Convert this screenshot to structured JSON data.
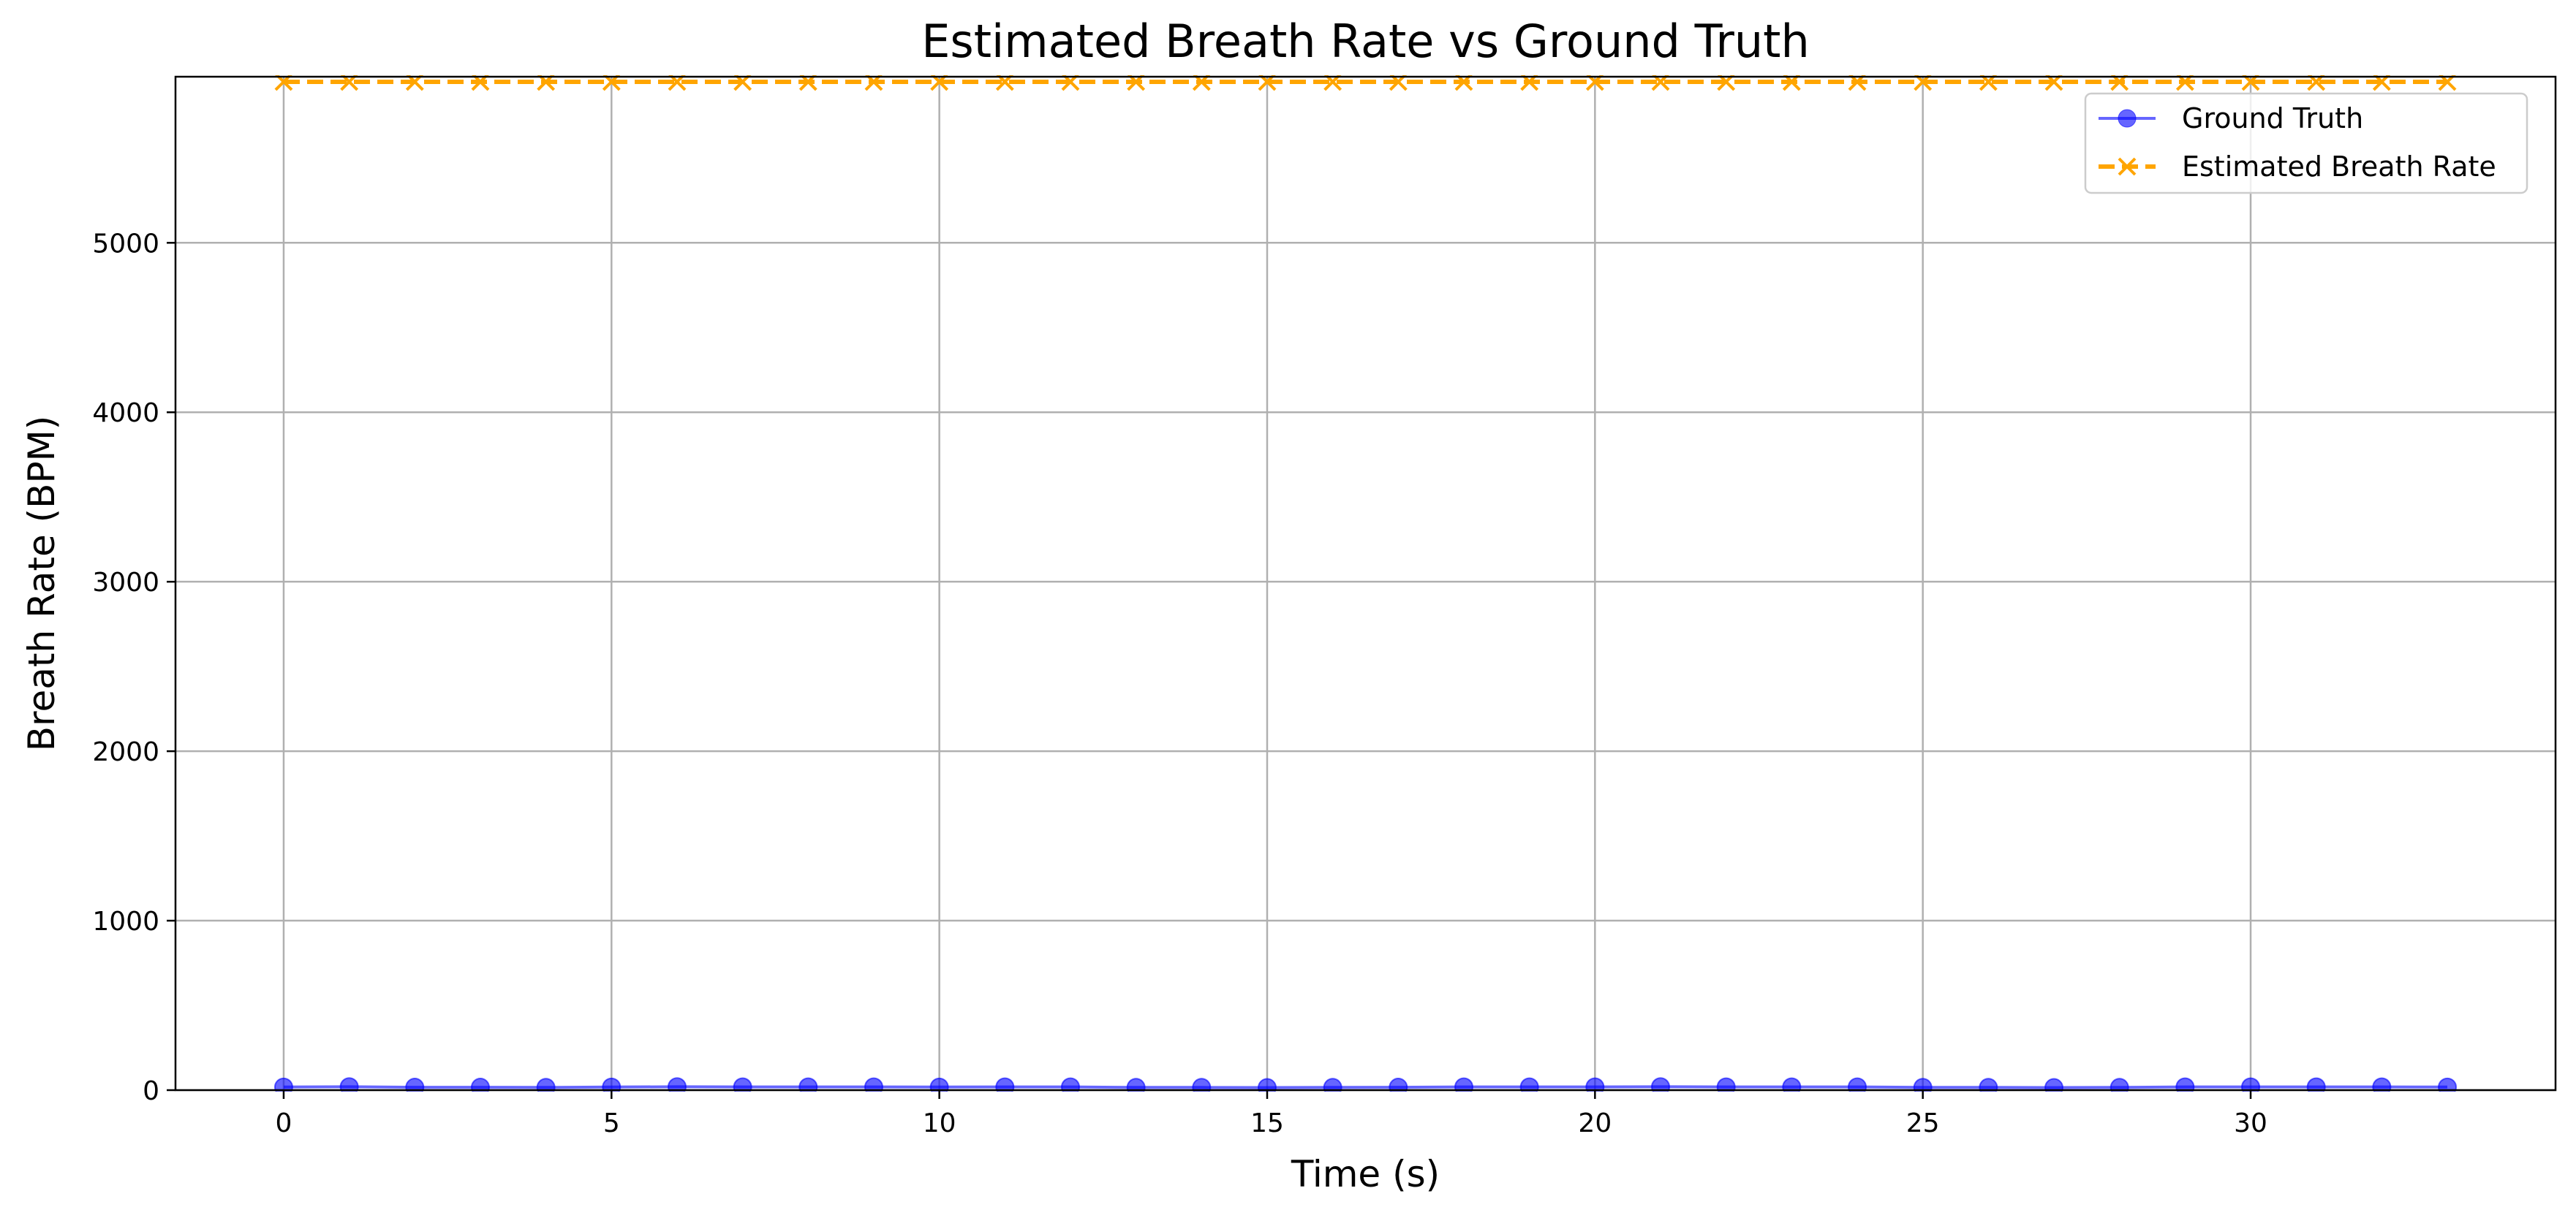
{
  "chart_data": {
    "type": "line",
    "title": "Estimated Breath Rate vs Ground Truth",
    "xlabel": "Time (s)",
    "ylabel": "Breath Rate (BPM)",
    "xlim": [
      -1.65,
      34.65
    ],
    "ylim": [
      0,
      5980
    ],
    "xticks": [
      0,
      5,
      10,
      15,
      20,
      25,
      30
    ],
    "yticks": [
      0,
      1000,
      2000,
      3000,
      4000,
      5000
    ],
    "grid": true,
    "legend_position": "top-right",
    "x": [
      0,
      1,
      2,
      3,
      4,
      5,
      6,
      7,
      8,
      9,
      10,
      11,
      12,
      13,
      14,
      15,
      16,
      17,
      18,
      19,
      20,
      21,
      22,
      23,
      24,
      25,
      26,
      27,
      28,
      29,
      30,
      31,
      32,
      33
    ],
    "series": [
      {
        "name": "Ground Truth",
        "color": "#0000ff",
        "marker": "circle",
        "line_style": "solid",
        "values": [
          18,
          20,
          17,
          17,
          16,
          18,
          20,
          19,
          19,
          19,
          18,
          19,
          19,
          16,
          16,
          15,
          16,
          17,
          19,
          19,
          19,
          20,
          19,
          19,
          19,
          16,
          16,
          15,
          16,
          19,
          19,
          19,
          19,
          18
        ]
      },
      {
        "name": "Estimated Breath Rate",
        "color": "#ffa500",
        "marker": "x",
        "line_style": "dashed",
        "values": [
          5950,
          5950,
          5950,
          5950,
          5950,
          5950,
          5950,
          5950,
          5950,
          5950,
          5950,
          5950,
          5950,
          5950,
          5950,
          5950,
          5950,
          5950,
          5950,
          5950,
          5950,
          5950,
          5950,
          5950,
          5950,
          5950,
          5950,
          5950,
          5950,
          5950,
          5950,
          5950,
          5950,
          5950
        ]
      }
    ]
  }
}
